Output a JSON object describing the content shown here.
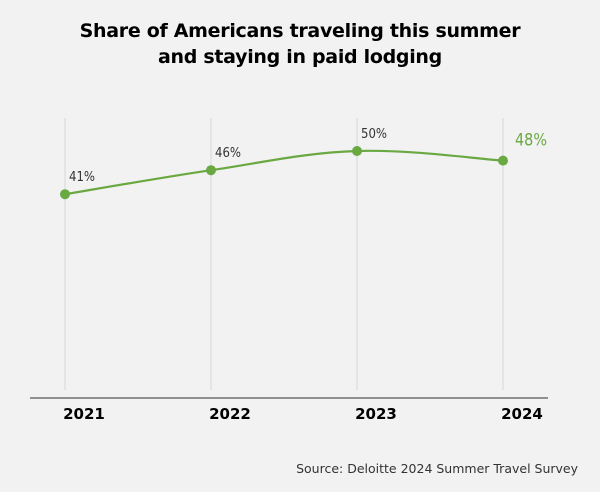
{
  "chart_data": {
    "type": "line",
    "title_lines": [
      "Share of Americans traveling this summer",
      "and staying in paid lodging"
    ],
    "categories": [
      "2021",
      "2022",
      "2023",
      "2024"
    ],
    "series": [
      {
        "name": "Share staying in paid lodging",
        "values": [
          41,
          46,
          50,
          48
        ],
        "labels": [
          "41%",
          "46%",
          "50%",
          "48%"
        ]
      }
    ],
    "xlabel": "",
    "ylabel": "",
    "ylim": [
      0,
      55
    ],
    "grid": "vertical",
    "highlight_last": true,
    "colors": {
      "line": "#6aa842",
      "highlight_label": "#6aa842",
      "label": "#333333",
      "grid": "#d6d6d6",
      "axis": "#555555"
    }
  },
  "source": "Source: Deloitte 2024 Summer Travel Survey"
}
